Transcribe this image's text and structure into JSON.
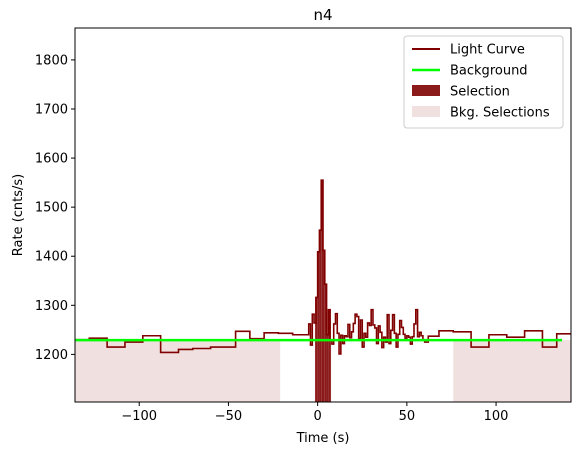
{
  "chart_data": {
    "type": "line",
    "title": "n4",
    "xlabel": "Time (s)",
    "ylabel": "Rate (cnts/s)",
    "xlim": [
      -136,
      142
    ],
    "ylim": [
      1103,
      1865
    ],
    "xticks": [
      -100,
      -50,
      0,
      50,
      100
    ],
    "xtick_labels": [
      "−100",
      "−50",
      "0",
      "50",
      "100"
    ],
    "yticks": [
      1200,
      1300,
      1400,
      1500,
      1600,
      1700,
      1800
    ],
    "ytick_labels": [
      "1200",
      "1300",
      "1400",
      "1500",
      "1600",
      "1700",
      "1800"
    ],
    "legend_position": "top-right",
    "colors": {
      "light_curve": "#800000",
      "background": "#00ff00",
      "selection": "#8b1a1a",
      "bkg_selection": "#f0e0e0"
    },
    "series": [
      {
        "name": "Light Curve",
        "style": "step",
        "x": [
          -136,
          -128,
          -118,
          -108,
          -98,
          -88,
          -78,
          -70,
          -60,
          -46,
          -38,
          -30,
          -22,
          -14,
          -6,
          -5,
          -4,
          -3,
          -2,
          -1,
          0,
          1,
          2,
          3,
          4,
          5,
          6,
          7,
          8,
          9,
          10,
          11,
          12,
          13,
          14,
          15,
          16,
          17,
          18,
          19,
          20,
          21,
          22,
          23,
          24,
          25,
          26,
          27,
          28,
          29,
          30,
          31,
          32,
          33,
          34,
          35,
          36,
          37,
          38,
          39,
          40,
          41,
          42,
          43,
          44,
          45,
          46,
          47,
          48,
          49,
          50,
          51,
          52,
          53,
          54,
          55,
          56,
          57,
          58,
          59,
          60,
          62,
          68,
          76,
          86,
          96,
          106,
          116,
          126,
          134,
          142
        ],
        "y": [
          1230,
          1233,
          1215,
          1225,
          1238,
          1204,
          1210,
          1212,
          1215,
          1247,
          1232,
          1244,
          1243,
          1240,
          1240,
          1262,
          1219,
          1282,
          1264,
          1316,
          1409,
          1453,
          1555,
          1412,
          1343,
          1240,
          1291,
          1229,
          1221,
          1262,
          1283,
          1243,
          1201,
          1239,
          1222,
          1238,
          1236,
          1261,
          1234,
          1246,
          1263,
          1282,
          1277,
          1232,
          1270,
          1215,
          1243,
          1235,
          1264,
          1259,
          1291,
          1260,
          1254,
          1222,
          1258,
          1245,
          1214,
          1235,
          1225,
          1281,
          1222,
          1249,
          1281,
          1243,
          1215,
          1241,
          1269,
          1255,
          1241,
          1231,
          1238,
          1235,
          1221,
          1236,
          1262,
          1291,
          1236,
          1245,
          1238,
          1229,
          1225,
          1237,
          1248,
          1246,
          1215,
          1240,
          1235,
          1248,
          1215,
          1242,
          1242
        ]
      },
      {
        "name": "Background",
        "style": "line",
        "x": [
          -136,
          137
        ],
        "y": [
          1229,
          1229
        ]
      }
    ],
    "selection": {
      "name": "Selection",
      "range": [
        -1.5,
        7.5
      ]
    },
    "bkg_selections": {
      "name": "Bkg. Selections",
      "ranges": [
        [
          -136,
          -21
        ],
        [
          76,
          142
        ]
      ]
    }
  }
}
